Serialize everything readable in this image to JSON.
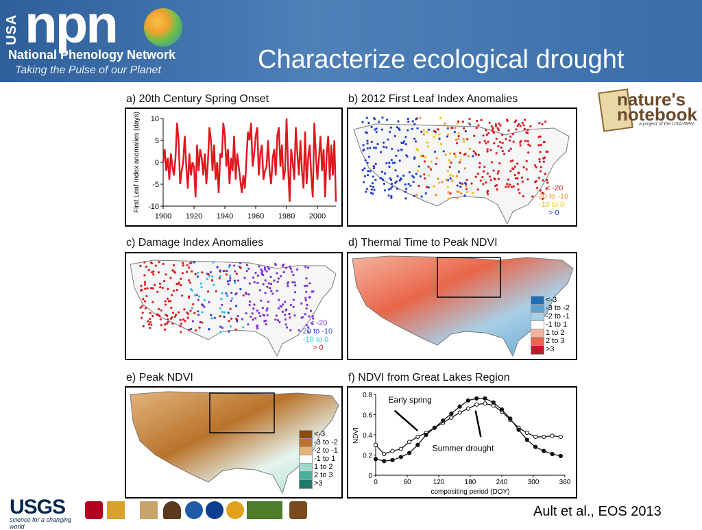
{
  "header": {
    "logo_prefix": "USA",
    "logo_word": "npn",
    "logo_title": "National Phenology Network",
    "tagline": "Taking the Pulse of our Planet",
    "slide_title": "Characterize ecological drought"
  },
  "natures_notebook": {
    "line1": "nature's",
    "line2": "notebook",
    "sub": "a project of the USA-NPN"
  },
  "panels": {
    "a": {
      "title": "a) 20th Century Spring Onset",
      "ylabel": "First Leaf Index anomalies (days)"
    },
    "b": {
      "title": "b) 2012 First Leaf Index Anomalies",
      "legend": [
        "< -20",
        "-20 to -10",
        "-10 to 0",
        "> 0"
      ]
    },
    "c": {
      "title": "c) Damage Index Anomalies",
      "legend": [
        "< -20",
        "-20 to -10",
        "-10 to 0",
        "> 0"
      ]
    },
    "d": {
      "title": "d) Thermal Time to Peak NDVI",
      "legend": [
        "<-3",
        "-3 to -2",
        "-2 to -1",
        "-1 to 1",
        "1 to 2",
        "2 to 3",
        ">3"
      ]
    },
    "e": {
      "title": "e) Peak NDVI",
      "legend": [
        "<-3",
        "-3 to -2",
        "-2 to -1",
        "-1 to 1",
        "1 to 2",
        "2 to 3",
        ">3"
      ]
    },
    "f": {
      "title": "f) NDVI from Great Lakes Region",
      "xlabel": "compositing period (DOY)",
      "ylabel": "NDVI",
      "ann1": "Early spring",
      "ann2": "Summer drought"
    }
  },
  "colors": {
    "banner": "#3a6ea8",
    "a_line": "#e0191e",
    "b_legend": [
      "#e0191e",
      "#f28c28",
      "#f2c200",
      "#1f3fcf"
    ],
    "c_legend": [
      "#7b2fd8",
      "#1f3fcf",
      "#26c1e6",
      "#e0191e"
    ],
    "d_legend": [
      "#1f6fb6",
      "#5ea2d0",
      "#a9cfe6",
      "#ffffff",
      "#f4b39e",
      "#e9664a",
      "#c0182b"
    ],
    "e_legend": [
      "#8a4b12",
      "#b9732b",
      "#e2b47c",
      "#ffffff",
      "#9fd9cd",
      "#4aaf9c",
      "#1e7a6a"
    ]
  },
  "chart_data": [
    {
      "type": "line",
      "title": "a) 20th Century Spring Onset",
      "xlabel": "",
      "ylabel": "First Leaf Index anomalies (days)",
      "xlim": [
        1900,
        2012
      ],
      "ylim": [
        -10,
        10
      ],
      "xticks": [
        1900,
        1920,
        1940,
        1960,
        1980,
        2000
      ],
      "yticks": [
        -10,
        -5,
        0,
        5,
        10
      ],
      "x": [
        1900,
        1901,
        1902,
        1903,
        1904,
        1905,
        1906,
        1907,
        1908,
        1909,
        1910,
        1911,
        1912,
        1913,
        1914,
        1915,
        1916,
        1917,
        1918,
        1919,
        1920,
        1921,
        1922,
        1923,
        1924,
        1925,
        1926,
        1927,
        1928,
        1929,
        1930,
        1931,
        1932,
        1933,
        1934,
        1935,
        1936,
        1937,
        1938,
        1939,
        1940,
        1941,
        1942,
        1943,
        1944,
        1945,
        1946,
        1947,
        1948,
        1949,
        1950,
        1951,
        1952,
        1953,
        1954,
        1955,
        1956,
        1957,
        1958,
        1959,
        1960,
        1961,
        1962,
        1963,
        1964,
        1965,
        1966,
        1967,
        1968,
        1969,
        1970,
        1971,
        1972,
        1973,
        1974,
        1975,
        1976,
        1977,
        1978,
        1979,
        1980,
        1981,
        1982,
        1983,
        1984,
        1985,
        1986,
        1987,
        1988,
        1989,
        1990,
        1991,
        1992,
        1993,
        1994,
        1995,
        1996,
        1997,
        1998,
        1999,
        2000,
        2001,
        2002,
        2003,
        2004,
        2005,
        2006,
        2007,
        2008,
        2009,
        2010,
        2011,
        2012
      ],
      "series": [
        {
          "values": [
            0,
            3,
            -2,
            1,
            -4,
            2,
            -1,
            -3,
            1,
            9,
            5,
            -5,
            -2,
            0,
            6,
            -1,
            -6,
            2,
            -3,
            0,
            -1,
            -8,
            4,
            -2,
            3,
            1,
            -3,
            2,
            -5,
            0,
            8,
            5,
            -2,
            4,
            -4,
            0,
            -7,
            2,
            1,
            9,
            6,
            -1,
            3,
            -5,
            1,
            -2,
            6,
            -4,
            2,
            -1,
            -4,
            -7,
            -3,
            -6,
            1,
            7,
            5,
            9,
            -1,
            2,
            6,
            8,
            -3,
            2,
            4,
            -4,
            -2,
            -1,
            5,
            -2,
            -5,
            1,
            3,
            -3,
            6,
            8,
            -1,
            4,
            -4,
            -2,
            10,
            -1,
            -9,
            3,
            0,
            -4,
            8,
            2,
            -3,
            5,
            -2,
            -6,
            7,
            -5,
            1,
            4,
            -3,
            -8,
            9,
            2,
            -4,
            1,
            6,
            -2,
            3,
            -8,
            2,
            6,
            -4,
            4,
            -3,
            5,
            -9
          ]
        }
      ]
    },
    {
      "type": "line",
      "title": "f) NDVI from Great Lakes Region",
      "xlabel": "compositing period (DOY)",
      "ylabel": "NDVI",
      "xlim": [
        0,
        360
      ],
      "ylim": [
        0,
        0.8
      ],
      "xticks": [
        0,
        60,
        120,
        180,
        240,
        300,
        360
      ],
      "yticks": [
        0,
        0.2,
        0.4,
        0.6,
        0.8
      ],
      "x": [
        0,
        16,
        32,
        48,
        64,
        80,
        96,
        112,
        128,
        144,
        160,
        176,
        192,
        208,
        224,
        240,
        256,
        272,
        288,
        304,
        320,
        336,
        352
      ],
      "series": [
        {
          "values": [
            0.3,
            0.21,
            0.24,
            0.26,
            0.33,
            0.38,
            0.42,
            0.47,
            0.52,
            0.57,
            0.62,
            0.66,
            0.7,
            0.71,
            0.69,
            0.63,
            0.55,
            0.47,
            0.42,
            0.38,
            0.38,
            0.39,
            0.38
          ]
        },
        {
          "values": [
            0.16,
            0.14,
            0.15,
            0.18,
            0.22,
            0.3,
            0.4,
            0.47,
            0.54,
            0.61,
            0.68,
            0.74,
            0.76,
            0.76,
            0.72,
            0.65,
            0.56,
            0.45,
            0.35,
            0.28,
            0.24,
            0.21,
            0.19
          ]
        }
      ]
    }
  ],
  "citation": "Ault et al., EOS 2013",
  "footer": {
    "usgs": "USGS",
    "usgs_sub": "science for a changing world"
  }
}
